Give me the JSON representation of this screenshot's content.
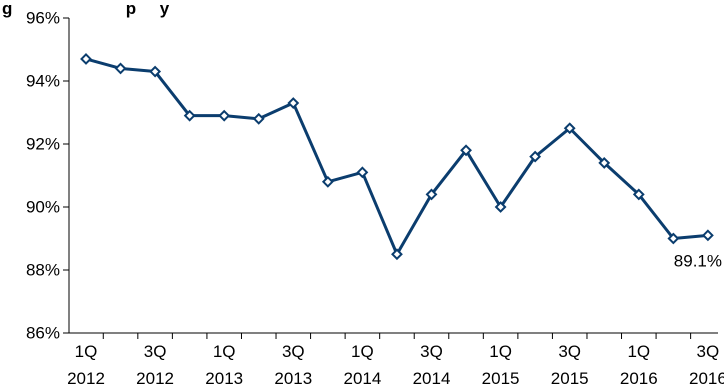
{
  "chart_data": {
    "type": "line",
    "title_fragment": "g                        p     y",
    "x": [
      "1Q 2012",
      "2Q 2012",
      "3Q 2012",
      "4Q 2012",
      "1Q 2013",
      "2Q 2013",
      "3Q 2013",
      "4Q 2013",
      "1Q 2014",
      "2Q 2014",
      "3Q 2014",
      "4Q 2014",
      "1Q 2015",
      "2Q 2015",
      "3Q 2015",
      "4Q 2015",
      "1Q 2016",
      "2Q 2016",
      "3Q 2016"
    ],
    "x_tick_labels": [
      {
        "index": 0,
        "line1": "1Q",
        "line2": "2012"
      },
      {
        "index": 2,
        "line1": "3Q",
        "line2": "2012"
      },
      {
        "index": 4,
        "line1": "1Q",
        "line2": "2013"
      },
      {
        "index": 6,
        "line1": "3Q",
        "line2": "2013"
      },
      {
        "index": 8,
        "line1": "1Q",
        "line2": "2014"
      },
      {
        "index": 10,
        "line1": "3Q",
        "line2": "2014"
      },
      {
        "index": 12,
        "line1": "1Q",
        "line2": "2015"
      },
      {
        "index": 14,
        "line1": "3Q",
        "line2": "2015"
      },
      {
        "index": 16,
        "line1": "1Q",
        "line2": "2016"
      },
      {
        "index": 18,
        "line1": "3Q",
        "line2": "2016"
      }
    ],
    "series": [
      {
        "values": [
          94.7,
          94.4,
          94.3,
          92.9,
          92.9,
          92.8,
          93.3,
          90.8,
          91.1,
          88.5,
          90.4,
          91.8,
          90.0,
          91.6,
          92.5,
          91.4,
          90.4,
          89.0,
          89.1
        ],
        "color": "#0b3d6e"
      }
    ],
    "ylim": [
      86,
      96
    ],
    "y_ticks": [
      86,
      88,
      90,
      92,
      94,
      96
    ],
    "y_tick_format": "percent",
    "data_labels": [
      {
        "index": 18,
        "text": "89.1%"
      }
    ],
    "grid": false,
    "legend": "none"
  }
}
